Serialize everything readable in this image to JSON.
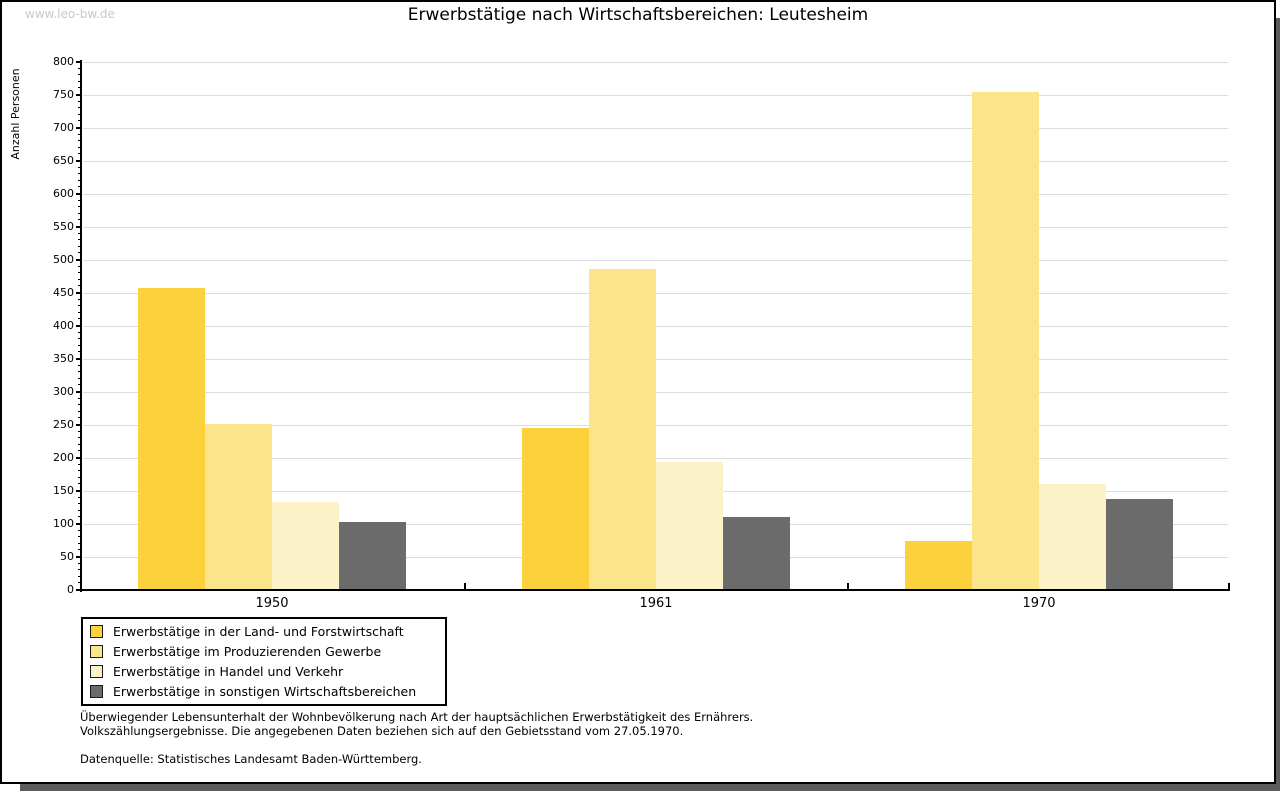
{
  "window": {
    "watermark": "www.leo-bw.de",
    "title": "Erwerbstätige nach Wirtschaftsbereichen: Leutesheim"
  },
  "chart_data": {
    "type": "bar",
    "title": "Erwerbstätige nach Wirtschaftsbereichen: Leutesheim",
    "xlabel": "",
    "ylabel": "Anzahl Personen",
    "categories": [
      "1950",
      "1961",
      "1970"
    ],
    "series": [
      {
        "name": "Erwerbstätige in der Land- und Forstwirtschaft",
        "color": "#FBD23C",
        "values": [
          457,
          245,
          75
        ]
      },
      {
        "name": "Erwerbstätige im Produzierenden Gewerbe",
        "color": "#FAE58A",
        "values": [
          252,
          487,
          755
        ]
      },
      {
        "name": "Erwerbstätige in Handel und Verkehr",
        "color": "#FBF2C7",
        "values": [
          134,
          194,
          160
        ]
      },
      {
        "name": "Erwerbstätige in sonstigen Wirtschaftsbereichen",
        "color": "#6B6B6B",
        "values": [
          103,
          111,
          138
        ]
      }
    ],
    "ylim": [
      0,
      800
    ],
    "ytick_step": 50,
    "yminor_step": 10,
    "grid": true,
    "gridline_color": "#dcdcdc",
    "legend_position": "bottom-left"
  },
  "footer": {
    "line1": "Überwiegender Lebensunterhalt der Wohnbevölkerung nach Art der hauptsächlichen Erwerbstätigkeit des Ernährers.",
    "line2": "Volkszählungsergebnisse. Die angegebenen Daten beziehen sich auf den Gebietsstand vom 27.05.1970.",
    "source": "Datenquelle: Statistisches Landesamt Baden-Württemberg."
  }
}
